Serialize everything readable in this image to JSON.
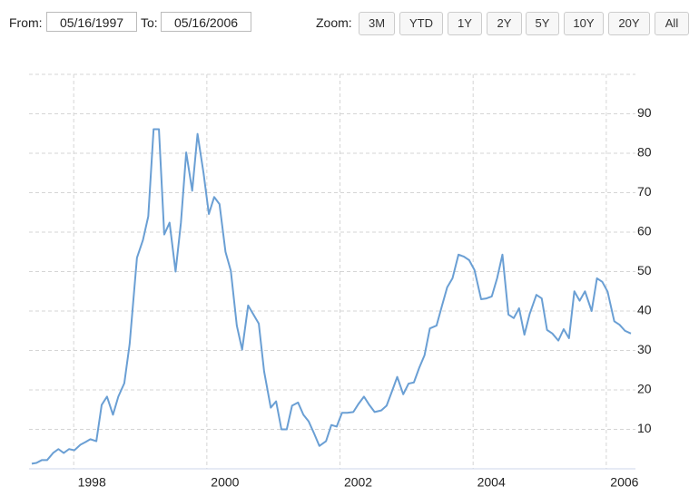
{
  "controls": {
    "from_label": "From:",
    "from_value": "05/16/1997",
    "to_label": "To:",
    "to_value": "05/16/2006",
    "zoom_label": "Zoom:",
    "zoom_buttons": [
      "3M",
      "YTD",
      "1Y",
      "2Y",
      "5Y",
      "10Y",
      "20Y",
      "All"
    ]
  },
  "chart_data": {
    "type": "line",
    "x": [
      1997.37,
      1997.44,
      1997.52,
      1997.6,
      1997.69,
      1997.77,
      1997.85,
      1997.93,
      1998.01,
      1998.1,
      1998.18,
      1998.25,
      1998.34,
      1998.42,
      1998.5,
      1998.59,
      1998.67,
      1998.76,
      1998.84,
      1998.95,
      1999.04,
      1999.12,
      1999.2,
      1999.28,
      1999.36,
      1999.44,
      1999.53,
      1999.61,
      1999.69,
      1999.78,
      1999.86,
      1999.95,
      2000.03,
      2000.11,
      2000.19,
      2000.28,
      2000.36,
      2000.45,
      2000.53,
      2000.62,
      2000.7,
      2000.78,
      2000.86,
      2000.96,
      2001.04,
      2001.12,
      2001.2,
      2001.28,
      2001.37,
      2001.45,
      2001.53,
      2001.61,
      2001.69,
      2001.79,
      2001.87,
      2001.95,
      2002.03,
      2002.11,
      2002.2,
      2002.28,
      2002.36,
      2002.44,
      2002.52,
      2002.62,
      2002.7,
      2002.78,
      2002.86,
      2002.95,
      2003.03,
      2003.11,
      2003.19,
      2003.27,
      2003.35,
      2003.45,
      2003.53,
      2003.61,
      2003.69,
      2003.78,
      2003.86,
      2003.94,
      2004.02,
      2004.12,
      2004.2,
      2004.28,
      2004.36,
      2004.44,
      2004.53,
      2004.61,
      2004.69,
      2004.77,
      2004.85,
      2004.95,
      2005.03,
      2005.11,
      2005.19,
      2005.28,
      2005.36,
      2005.44,
      2005.52,
      2005.6,
      2005.68,
      2005.78,
      2005.86,
      2005.94,
      2006.02,
      2006.12,
      2006.2,
      2006.28,
      2006.37
    ],
    "series": [
      {
        "color": "#6a9fd4",
        "values": [
          1.3,
          1.5,
          2.2,
          2.2,
          4,
          5,
          4,
          5,
          4.7,
          6.1,
          6.8,
          7.5,
          7,
          16.2,
          18.3,
          13.7,
          18.3,
          21.7,
          31.6,
          53.5,
          58,
          64,
          86.1,
          86.1,
          59.4,
          62.4,
          50,
          62.3,
          80.2,
          70.5,
          84.9,
          75,
          64.6,
          68.9,
          67.1,
          55,
          50.2,
          36.3,
          30.2,
          41.4,
          39.1,
          36.8,
          24.7,
          15.5,
          17.1,
          10,
          10,
          16,
          16.8,
          13.7,
          12,
          9,
          5.8,
          7,
          11.1,
          10.7,
          14.2,
          14.2,
          14.4,
          16.5,
          18.3,
          16.2,
          14.4,
          14.8,
          16,
          19.6,
          23.3,
          18.9,
          21.6,
          21.9,
          25.6,
          28.8,
          35.6,
          36.3,
          41.2,
          46,
          48.3,
          54.3,
          53.8,
          52.9,
          50.4,
          43,
          43.2,
          43.7,
          48.3,
          54.3,
          39.1,
          38.2,
          40.7,
          34,
          39.3,
          44.1,
          43.2,
          35.2,
          34.3,
          32.5,
          35.4,
          33.1,
          45,
          42.6,
          45,
          40,
          48.3,
          47.4,
          44.9,
          37.4,
          36.5,
          35,
          34.3
        ]
      }
    ],
    "xlim": [
      1997.37,
      2006.37
    ],
    "xticks": [
      1998,
      2000,
      2002,
      2004,
      2006
    ],
    "ylim": [
      0,
      100
    ],
    "yticks": [
      10,
      20,
      30,
      40,
      50,
      60,
      70,
      80,
      90
    ],
    "grid": true
  }
}
